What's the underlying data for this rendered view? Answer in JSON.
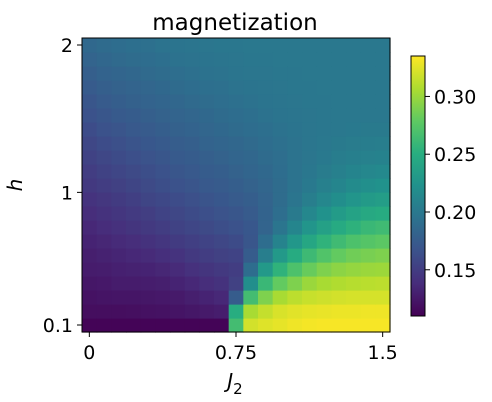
{
  "chart_data": {
    "type": "heatmap",
    "title": "magnetization",
    "xlabel": "J",
    "xlabel_sub": "2",
    "ylabel": "h",
    "x_ticks": [
      {
        "value": 0,
        "label": "0"
      },
      {
        "value": 0.75,
        "label": "0.75"
      },
      {
        "value": 1.5,
        "label": "1.5"
      }
    ],
    "y_ticks": [
      {
        "value": 0.1,
        "label": "0.1"
      },
      {
        "value": 1,
        "label": "1"
      },
      {
        "value": 2,
        "label": "2"
      }
    ],
    "xlim": [
      0,
      1.5
    ],
    "ylim": [
      0.1,
      2
    ],
    "colorbar": {
      "colormap": "viridis",
      "range": [
        0.11,
        0.335
      ],
      "ticks": [
        {
          "value": 0.15,
          "label": "0.15"
        },
        {
          "value": 0.2,
          "label": "0.20"
        },
        {
          "value": 0.25,
          "label": "0.25"
        },
        {
          "value": 0.3,
          "label": "0.30"
        }
      ]
    },
    "grid": {
      "x": [
        0,
        0.075,
        0.15,
        0.225,
        0.3,
        0.375,
        0.45,
        0.525,
        0.6,
        0.675,
        0.75,
        0.825,
        0.9,
        0.975,
        1.05,
        1.125,
        1.2,
        1.275,
        1.35,
        1.425,
        1.5
      ],
      "y": [
        0.1,
        0.195,
        0.29,
        0.385,
        0.48,
        0.575,
        0.67,
        0.765,
        0.86,
        0.955,
        1.05,
        1.145,
        1.24,
        1.335,
        1.43,
        1.525,
        1.62,
        1.715,
        1.81,
        1.905,
        2
      ],
      "values": [
        [
          0.112,
          0.112,
          0.112,
          0.112,
          0.112,
          0.112,
          0.112,
          0.112,
          0.112,
          0.112,
          0.265,
          0.32,
          0.324,
          0.327,
          0.33,
          0.332,
          0.333,
          0.333,
          0.333,
          0.333,
          0.333
        ],
        [
          0.118,
          0.118,
          0.118,
          0.119,
          0.12,
          0.121,
          0.122,
          0.124,
          0.126,
          0.128,
          0.25,
          0.305,
          0.315,
          0.322,
          0.325,
          0.327,
          0.328,
          0.329,
          0.329,
          0.33,
          0.33
        ],
        [
          0.121,
          0.122,
          0.123,
          0.123,
          0.124,
          0.125,
          0.126,
          0.129,
          0.132,
          0.135,
          0.175,
          0.265,
          0.29,
          0.305,
          0.312,
          0.316,
          0.318,
          0.32,
          0.321,
          0.321,
          0.321
        ],
        [
          0.124,
          0.125,
          0.127,
          0.127,
          0.128,
          0.129,
          0.132,
          0.135,
          0.139,
          0.142,
          0.153,
          0.22,
          0.26,
          0.28,
          0.29,
          0.3,
          0.305,
          0.308,
          0.31,
          0.311,
          0.312
        ],
        [
          0.127,
          0.128,
          0.13,
          0.131,
          0.132,
          0.134,
          0.137,
          0.141,
          0.144,
          0.147,
          0.15,
          0.19,
          0.23,
          0.255,
          0.27,
          0.282,
          0.29,
          0.295,
          0.298,
          0.3,
          0.301
        ],
        [
          0.129,
          0.131,
          0.133,
          0.135,
          0.137,
          0.14,
          0.143,
          0.147,
          0.15,
          0.153,
          0.155,
          0.175,
          0.205,
          0.23,
          0.248,
          0.262,
          0.272,
          0.28,
          0.285,
          0.288,
          0.29
        ],
        [
          0.132,
          0.134,
          0.137,
          0.139,
          0.142,
          0.145,
          0.149,
          0.152,
          0.155,
          0.158,
          0.161,
          0.17,
          0.19,
          0.21,
          0.228,
          0.243,
          0.255,
          0.263,
          0.27,
          0.274,
          0.277
        ],
        [
          0.135,
          0.138,
          0.141,
          0.144,
          0.147,
          0.15,
          0.154,
          0.157,
          0.16,
          0.163,
          0.166,
          0.171,
          0.182,
          0.197,
          0.212,
          0.226,
          0.237,
          0.247,
          0.254,
          0.26,
          0.263
        ],
        [
          0.139,
          0.142,
          0.145,
          0.148,
          0.151,
          0.155,
          0.158,
          0.161,
          0.164,
          0.167,
          0.17,
          0.174,
          0.181,
          0.191,
          0.202,
          0.213,
          0.223,
          0.232,
          0.239,
          0.245,
          0.248
        ],
        [
          0.143,
          0.146,
          0.149,
          0.152,
          0.156,
          0.159,
          0.162,
          0.165,
          0.168,
          0.171,
          0.174,
          0.177,
          0.182,
          0.189,
          0.197,
          0.205,
          0.213,
          0.22,
          0.226,
          0.231,
          0.234
        ],
        [
          0.147,
          0.15,
          0.153,
          0.156,
          0.16,
          0.163,
          0.166,
          0.169,
          0.172,
          0.174,
          0.177,
          0.18,
          0.184,
          0.189,
          0.195,
          0.201,
          0.207,
          0.212,
          0.217,
          0.221,
          0.223
        ],
        [
          0.15,
          0.154,
          0.157,
          0.16,
          0.163,
          0.166,
          0.17,
          0.172,
          0.175,
          0.177,
          0.18,
          0.183,
          0.186,
          0.19,
          0.195,
          0.199,
          0.203,
          0.207,
          0.211,
          0.213,
          0.215
        ],
        [
          0.154,
          0.158,
          0.161,
          0.164,
          0.167,
          0.17,
          0.173,
          0.175,
          0.178,
          0.18,
          0.183,
          0.185,
          0.188,
          0.191,
          0.195,
          0.198,
          0.201,
          0.204,
          0.206,
          0.208,
          0.209
        ],
        [
          0.158,
          0.162,
          0.165,
          0.168,
          0.171,
          0.173,
          0.176,
          0.178,
          0.181,
          0.183,
          0.185,
          0.187,
          0.19,
          0.193,
          0.195,
          0.198,
          0.2,
          0.202,
          0.203,
          0.204,
          0.205
        ],
        [
          0.162,
          0.166,
          0.169,
          0.172,
          0.174,
          0.177,
          0.179,
          0.181,
          0.184,
          0.186,
          0.188,
          0.19,
          0.192,
          0.194,
          0.196,
          0.198,
          0.199,
          0.2,
          0.201,
          0.202,
          0.202
        ],
        [
          0.166,
          0.17,
          0.173,
          0.175,
          0.178,
          0.18,
          0.182,
          0.184,
          0.186,
          0.188,
          0.19,
          0.192,
          0.194,
          0.196,
          0.197,
          0.198,
          0.199,
          0.2,
          0.2,
          0.2,
          0.2
        ],
        [
          0.17,
          0.174,
          0.177,
          0.179,
          0.181,
          0.183,
          0.185,
          0.187,
          0.189,
          0.191,
          0.193,
          0.194,
          0.196,
          0.197,
          0.198,
          0.199,
          0.199,
          0.2,
          0.2,
          0.2,
          0.2
        ],
        [
          0.174,
          0.178,
          0.18,
          0.182,
          0.184,
          0.186,
          0.188,
          0.19,
          0.192,
          0.193,
          0.195,
          0.196,
          0.197,
          0.198,
          0.199,
          0.199,
          0.2,
          0.2,
          0.2,
          0.2,
          0.2
        ],
        [
          0.178,
          0.181,
          0.183,
          0.185,
          0.187,
          0.189,
          0.191,
          0.193,
          0.194,
          0.195,
          0.197,
          0.198,
          0.198,
          0.199,
          0.199,
          0.2,
          0.2,
          0.2,
          0.2,
          0.2,
          0.2
        ],
        [
          0.182,
          0.185,
          0.187,
          0.189,
          0.19,
          0.192,
          0.194,
          0.195,
          0.196,
          0.197,
          0.198,
          0.199,
          0.199,
          0.2,
          0.2,
          0.2,
          0.2,
          0.2,
          0.2,
          0.2,
          0.2
        ],
        [
          0.186,
          0.188,
          0.19,
          0.192,
          0.193,
          0.195,
          0.196,
          0.197,
          0.198,
          0.199,
          0.199,
          0.2,
          0.2,
          0.2,
          0.2,
          0.2,
          0.2,
          0.2,
          0.2,
          0.2,
          0.2
        ]
      ]
    }
  }
}
